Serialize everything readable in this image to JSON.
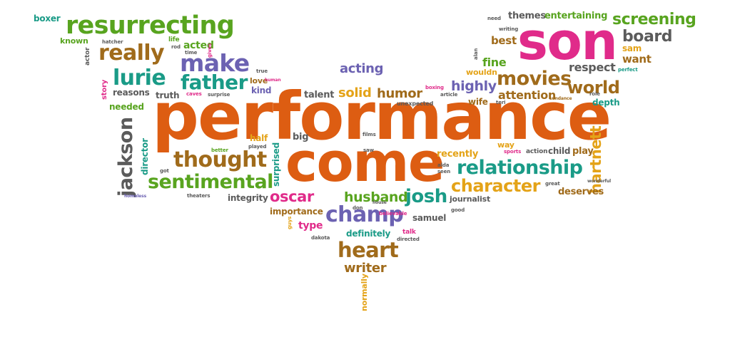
{
  "colors": {
    "orange": "#dd5d12",
    "green": "#58a41f",
    "purple": "#6c62b2",
    "brown": "#a06b1b",
    "pink": "#e02b8a",
    "teal": "#1a9b87",
    "gray": "#5b5b5b",
    "gold": "#e4a318"
  },
  "words": [
    {
      "text": "performance",
      "color": "orange"
    },
    {
      "text": "come",
      "color": "orange"
    },
    {
      "text": "son",
      "color": "pink"
    },
    {
      "text": "resurrecting",
      "color": "green"
    },
    {
      "text": "really",
      "color": "brown"
    },
    {
      "text": "make",
      "color": "purple"
    },
    {
      "text": "father",
      "color": "teal"
    },
    {
      "text": "lurie",
      "color": "teal"
    },
    {
      "text": "thought",
      "color": "brown"
    },
    {
      "text": "sentimental",
      "color": "green"
    },
    {
      "text": "jackson",
      "color": "gray"
    },
    {
      "text": "relationship",
      "color": "teal"
    },
    {
      "text": "character",
      "color": "gold"
    },
    {
      "text": "champ",
      "color": "purple"
    },
    {
      "text": "heart",
      "color": "brown"
    },
    {
      "text": "movies",
      "color": "brown"
    },
    {
      "text": "world",
      "color": "brown"
    },
    {
      "text": "screening",
      "color": "green"
    },
    {
      "text": "board",
      "color": "gray"
    },
    {
      "text": "josh",
      "color": "teal"
    },
    {
      "text": "husband",
      "color": "green"
    },
    {
      "text": "oscar",
      "color": "pink"
    },
    {
      "text": "hartnett",
      "color": "gold"
    },
    {
      "text": "writer",
      "color": "brown"
    },
    {
      "text": "acting",
      "color": "purple"
    },
    {
      "text": "highly",
      "color": "purple"
    },
    {
      "text": "solid",
      "color": "gold"
    },
    {
      "text": "humor",
      "color": "brown"
    },
    {
      "text": "attention",
      "color": "brown"
    },
    {
      "text": "respect",
      "color": "gray"
    },
    {
      "text": "best",
      "color": "brown"
    },
    {
      "text": "fine",
      "color": "green"
    },
    {
      "text": "want",
      "color": "brown"
    },
    {
      "text": "sam",
      "color": "gold"
    },
    {
      "text": "themes",
      "color": "gray"
    },
    {
      "text": "entertaining",
      "color": "green"
    },
    {
      "text": "boxer",
      "color": "teal"
    },
    {
      "text": "acted",
      "color": "green"
    },
    {
      "text": "known",
      "color": "green"
    },
    {
      "text": "reasons",
      "color": "gray"
    },
    {
      "text": "truth",
      "color": "gray"
    },
    {
      "text": "love",
      "color": "brown"
    },
    {
      "text": "kind",
      "color": "purple"
    },
    {
      "text": "talent",
      "color": "gray"
    },
    {
      "text": "needed",
      "color": "green"
    },
    {
      "text": "director",
      "color": "teal"
    },
    {
      "text": "half",
      "color": "gold"
    },
    {
      "text": "big",
      "color": "gray"
    },
    {
      "text": "integrity",
      "color": "gray"
    },
    {
      "text": "importance",
      "color": "brown"
    },
    {
      "text": "type",
      "color": "pink"
    },
    {
      "text": "definitely",
      "color": "teal"
    },
    {
      "text": "samuel",
      "color": "gray"
    },
    {
      "text": "journalist",
      "color": "gray"
    },
    {
      "text": "deserves",
      "color": "brown"
    },
    {
      "text": "play",
      "color": "brown"
    },
    {
      "text": "child",
      "color": "gray"
    },
    {
      "text": "action",
      "color": "gray"
    },
    {
      "text": "recently",
      "color": "gold"
    },
    {
      "text": "way",
      "color": "gold"
    },
    {
      "text": "wife",
      "color": "brown"
    },
    {
      "text": "depth",
      "color": "teal"
    },
    {
      "text": "wouldn",
      "color": "gold"
    },
    {
      "text": "surprised",
      "color": "teal"
    },
    {
      "text": "normally",
      "color": "gold"
    },
    {
      "text": "unexpected",
      "color": "gray"
    },
    {
      "text": "story",
      "color": "pink"
    },
    {
      "text": "actor",
      "color": "gray"
    },
    {
      "text": "life",
      "color": "green"
    },
    {
      "text": "rod",
      "color": "gray"
    },
    {
      "text": "hatcher",
      "color": "gray"
    },
    {
      "text": "time",
      "color": "gray"
    },
    {
      "text": "gives",
      "color": "pink"
    },
    {
      "text": "human",
      "color": "pink"
    },
    {
      "text": "true",
      "color": "gray"
    },
    {
      "text": "caves",
      "color": "pink"
    },
    {
      "text": "surprise",
      "color": "gray"
    },
    {
      "text": "boxing",
      "color": "pink"
    },
    {
      "text": "article",
      "color": "gray"
    },
    {
      "text": "teri",
      "color": "gray"
    },
    {
      "text": "sundance",
      "color": "brown"
    },
    {
      "text": "perfect",
      "color": "teal"
    },
    {
      "text": "role",
      "color": "gray"
    },
    {
      "text": "writing",
      "color": "gray"
    },
    {
      "text": "need",
      "color": "gray"
    },
    {
      "text": "alan",
      "color": "gray"
    },
    {
      "text": "better",
      "color": "green"
    },
    {
      "text": "played",
      "color": "gray"
    },
    {
      "text": "got",
      "color": "gray"
    },
    {
      "text": "homeless",
      "color": "purple"
    },
    {
      "text": "theaters",
      "color": "gray"
    },
    {
      "text": "saw",
      "color": "gray"
    },
    {
      "text": "films",
      "color": "gray"
    },
    {
      "text": "alda",
      "color": "gray"
    },
    {
      "text": "seen",
      "color": "gray"
    },
    {
      "text": "sports",
      "color": "pink"
    },
    {
      "text": "great",
      "color": "gray"
    },
    {
      "text": "wonderful",
      "color": "gray"
    },
    {
      "text": "house",
      "color": "gray"
    },
    {
      "text": "don",
      "color": "gray"
    },
    {
      "text": "believable",
      "color": "pink"
    },
    {
      "text": "good",
      "color": "gray"
    },
    {
      "text": "talk",
      "color": "pink"
    },
    {
      "text": "directed",
      "color": "gray"
    },
    {
      "text": "dakota",
      "color": "gray"
    },
    {
      "text": "guys",
      "color": "gold"
    }
  ]
}
